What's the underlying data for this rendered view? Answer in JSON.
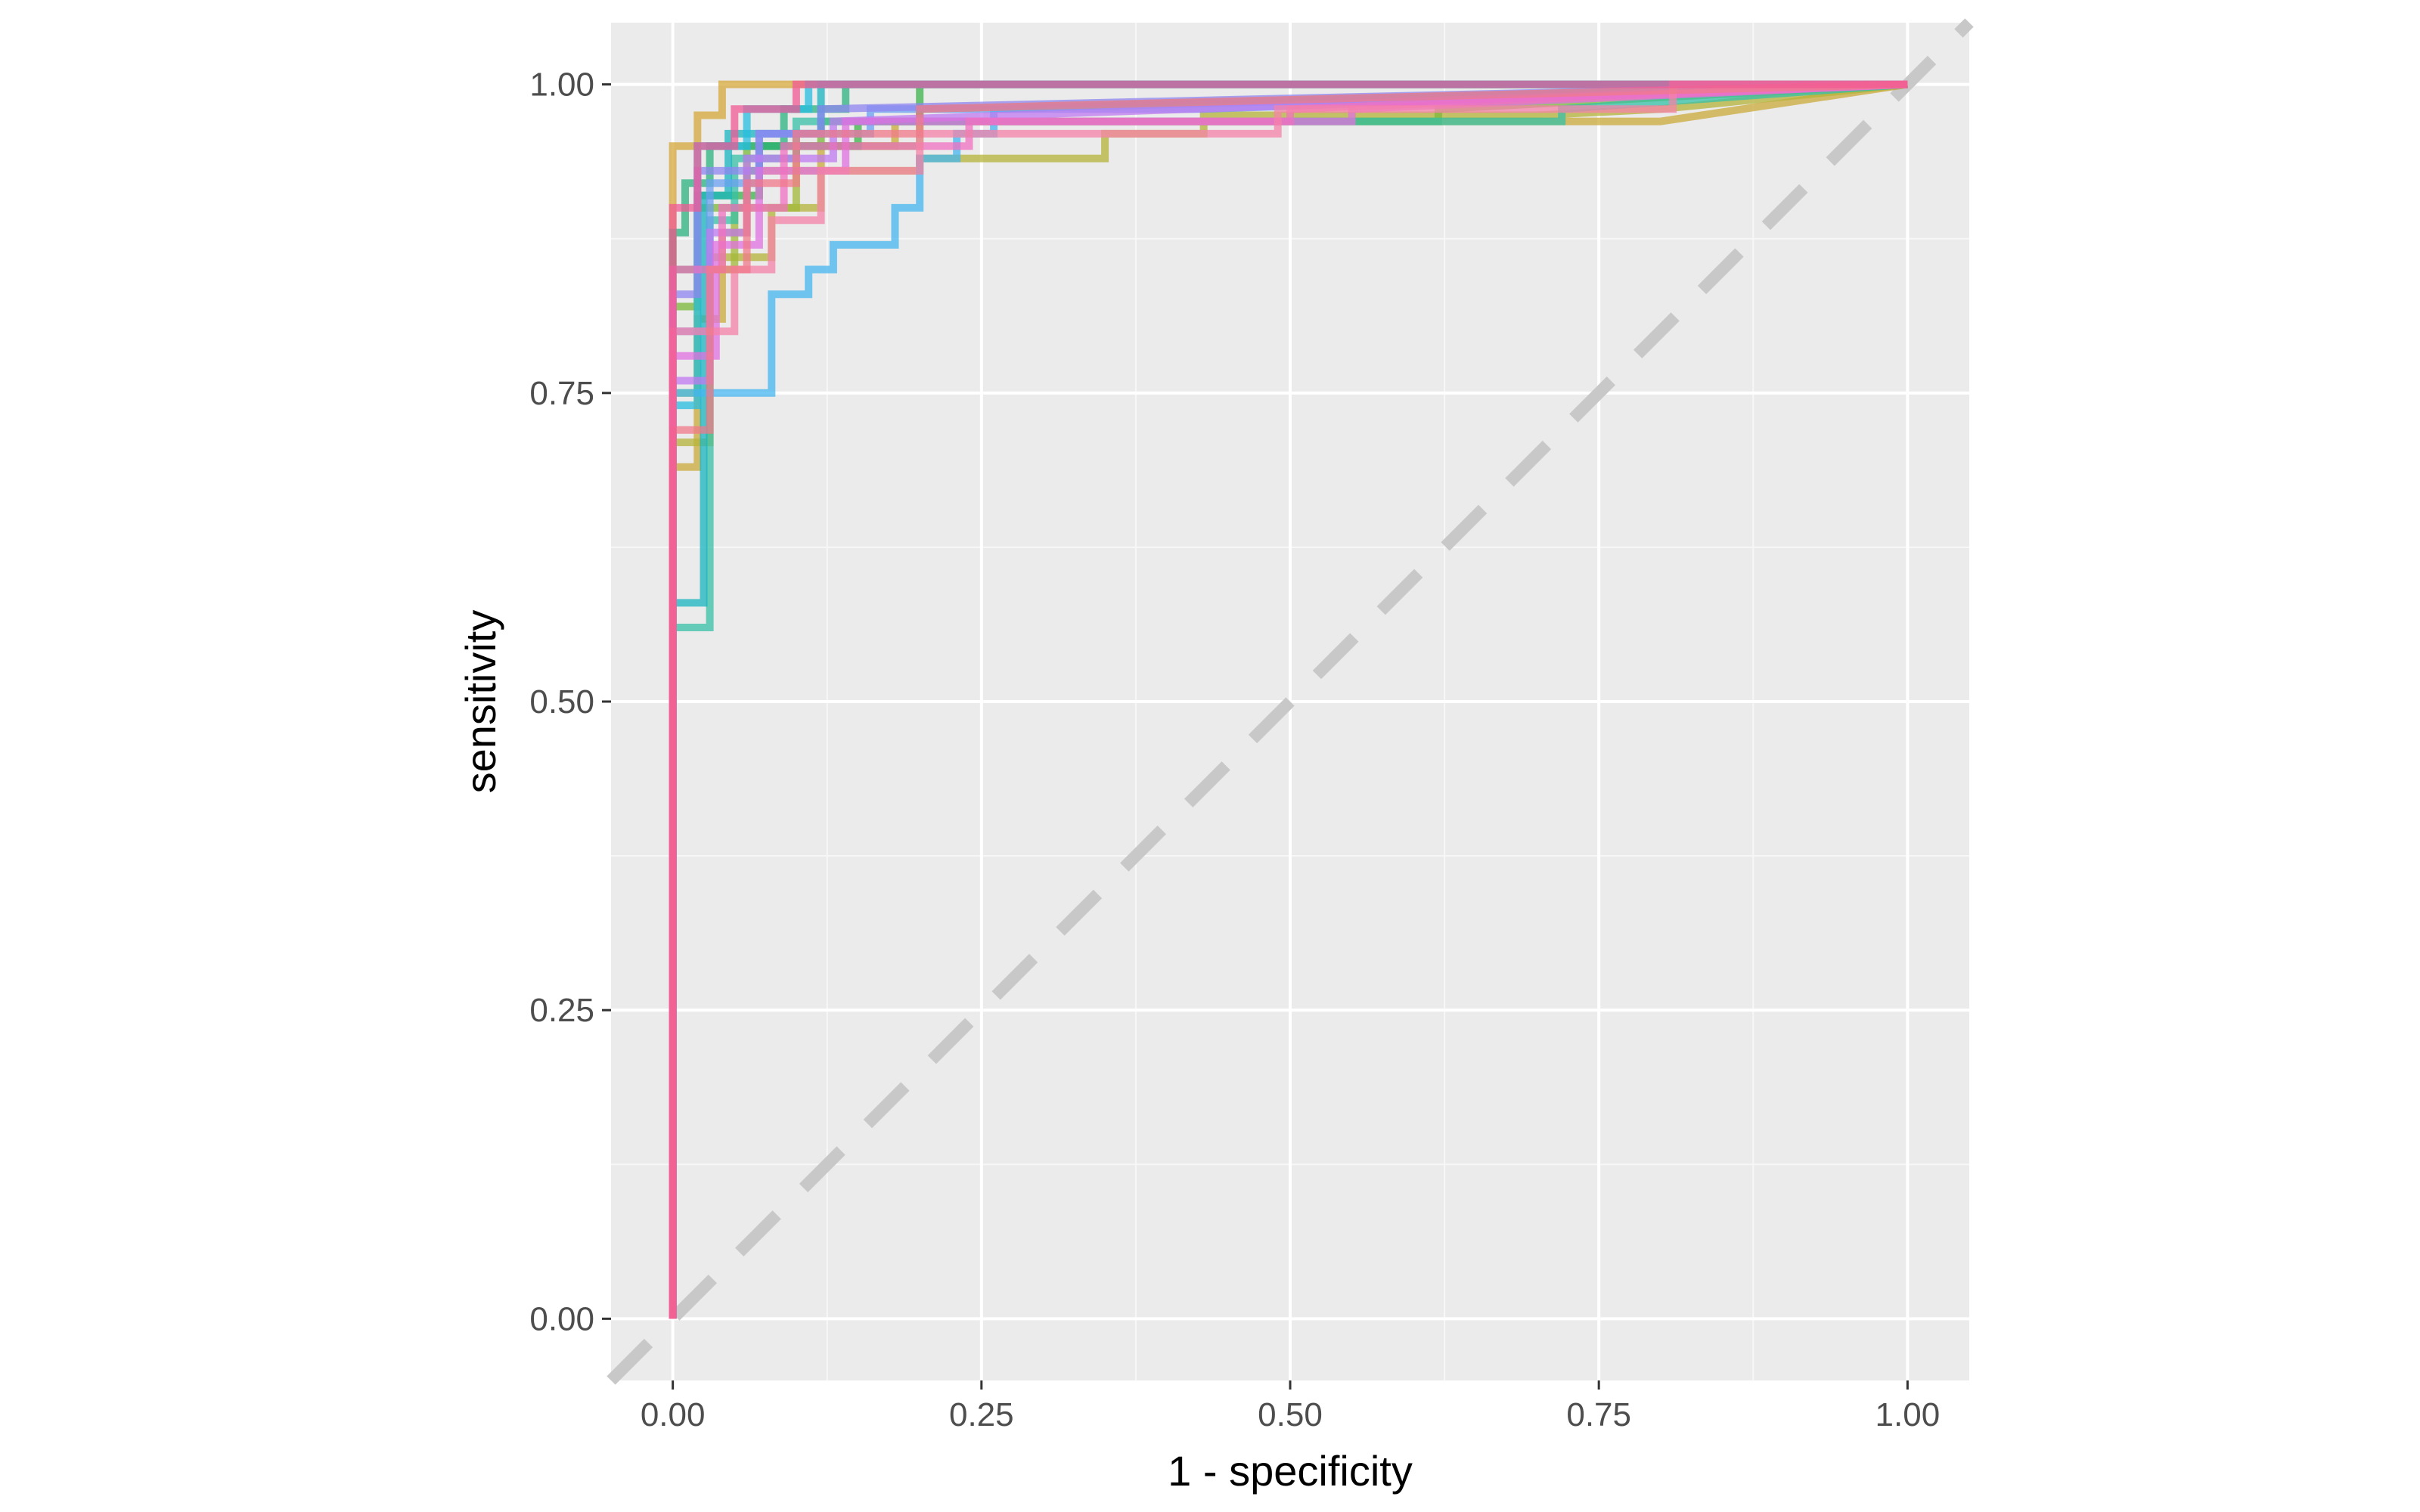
{
  "chart_data": {
    "type": "line",
    "title": "",
    "xlabel": "1 - specificity",
    "ylabel": "sensitivity",
    "xlim": [
      -0.05,
      1.05
    ],
    "ylim": [
      -0.05,
      1.05
    ],
    "x_ticks": [
      "0.00",
      "0.25",
      "0.50",
      "0.75",
      "1.00"
    ],
    "y_ticks": [
      "0.00",
      "0.25",
      "0.50",
      "0.75",
      "1.00"
    ],
    "grid": true,
    "legend": "none",
    "background": "#ebebeb",
    "reference_line": {
      "x": [
        -0.05,
        1.05
      ],
      "y": [
        -0.05,
        1.05
      ],
      "style": "dashed",
      "color": "#c8c8c8"
    },
    "series": [
      {
        "color": "#d4a73a",
        "points": [
          [
            0,
            0
          ],
          [
            0,
            0.95
          ],
          [
            0.02,
            0.95
          ],
          [
            0.02,
            0.975
          ],
          [
            0.04,
            0.975
          ],
          [
            0.04,
            1.0
          ],
          [
            1,
            1.0
          ]
        ]
      },
      {
        "color": "#c9a93a",
        "points": [
          [
            0,
            0
          ],
          [
            0,
            0.69
          ],
          [
            0.02,
            0.69
          ],
          [
            0.02,
            0.81
          ],
          [
            0.04,
            0.81
          ],
          [
            0.04,
            0.88
          ],
          [
            0.06,
            0.88
          ],
          [
            0.06,
            0.93
          ],
          [
            0.12,
            0.93
          ],
          [
            0.12,
            0.95
          ],
          [
            0.18,
            0.95
          ],
          [
            0.18,
            0.97
          ],
          [
            0.8,
            0.97
          ],
          [
            1,
            1.0
          ]
        ]
      },
      {
        "color": "#b5b33a",
        "points": [
          [
            0,
            0
          ],
          [
            0,
            0.71
          ],
          [
            0.03,
            0.71
          ],
          [
            0.03,
            0.86
          ],
          [
            0.08,
            0.86
          ],
          [
            0.08,
            0.9
          ],
          [
            0.12,
            0.9
          ],
          [
            0.12,
            0.93
          ],
          [
            0.2,
            0.93
          ],
          [
            0.2,
            0.94
          ],
          [
            0.35,
            0.94
          ],
          [
            0.35,
            0.96
          ],
          [
            0.43,
            0.96
          ],
          [
            0.43,
            0.975
          ],
          [
            0.7,
            0.975
          ],
          [
            0.8,
            0.98
          ],
          [
            1,
            1.0
          ]
        ]
      },
      {
        "color": "#a2b83a",
        "points": [
          [
            0,
            0
          ],
          [
            0,
            0.75
          ],
          [
            0.02,
            0.75
          ],
          [
            0.02,
            0.85
          ],
          [
            0.05,
            0.85
          ],
          [
            0.05,
            0.9
          ],
          [
            0.1,
            0.9
          ],
          [
            0.1,
            0.95
          ],
          [
            0.2,
            0.95
          ],
          [
            0.2,
            0.98
          ],
          [
            1,
            1.0
          ]
        ]
      },
      {
        "color": "#7bb83a",
        "points": [
          [
            0,
            0
          ],
          [
            0,
            0.82
          ],
          [
            0.02,
            0.82
          ],
          [
            0.02,
            0.9
          ],
          [
            0.06,
            0.9
          ],
          [
            0.06,
            0.95
          ],
          [
            0.12,
            0.95
          ],
          [
            0.12,
            0.97
          ],
          [
            0.62,
            0.97
          ],
          [
            0.62,
            0.98
          ],
          [
            1,
            1.0
          ]
        ]
      },
      {
        "color": "#3bb34a",
        "points": [
          [
            0,
            0
          ],
          [
            0,
            0.85
          ],
          [
            0.02,
            0.85
          ],
          [
            0.02,
            0.91
          ],
          [
            0.07,
            0.91
          ],
          [
            0.07,
            0.95
          ],
          [
            0.15,
            0.95
          ],
          [
            0.15,
            0.97
          ],
          [
            0.2,
            0.97
          ],
          [
            0.2,
            1.0
          ],
          [
            1,
            1.0
          ]
        ]
      },
      {
        "color": "#2bb37f",
        "points": [
          [
            0,
            0
          ],
          [
            0,
            0.88
          ],
          [
            0.01,
            0.88
          ],
          [
            0.01,
            0.92
          ],
          [
            0.03,
            0.92
          ],
          [
            0.03,
            0.95
          ],
          [
            0.09,
            0.95
          ],
          [
            0.09,
            0.98
          ],
          [
            0.14,
            0.98
          ],
          [
            0.14,
            1.0
          ],
          [
            1,
            1.0
          ]
        ]
      },
      {
        "color": "#35c0a6",
        "points": [
          [
            0,
            0
          ],
          [
            0,
            0.56
          ],
          [
            0.03,
            0.56
          ],
          [
            0.03,
            0.89
          ],
          [
            0.05,
            0.89
          ],
          [
            0.05,
            0.94
          ],
          [
            0.1,
            0.94
          ],
          [
            0.1,
            0.97
          ],
          [
            0.72,
            0.97
          ],
          [
            0.72,
            0.98
          ],
          [
            1,
            1.0
          ]
        ]
      },
      {
        "color": "#19b4c0",
        "points": [
          [
            0,
            0
          ],
          [
            0,
            0.58
          ],
          [
            0.025,
            0.58
          ],
          [
            0.025,
            0.91
          ],
          [
            0.045,
            0.91
          ],
          [
            0.045,
            0.96
          ],
          [
            0.12,
            0.96
          ],
          [
            0.12,
            1.0
          ],
          [
            1,
            1.0
          ]
        ]
      },
      {
        "color": "#25bde0",
        "points": [
          [
            0,
            0
          ],
          [
            0,
            0.74
          ],
          [
            0.02,
            0.74
          ],
          [
            0.02,
            0.95
          ],
          [
            0.06,
            0.95
          ],
          [
            0.06,
            0.98
          ],
          [
            0.11,
            0.98
          ],
          [
            0.11,
            1.0
          ],
          [
            1,
            1.0
          ]
        ]
      },
      {
        "color": "#45b5f0",
        "points": [
          [
            0,
            0
          ],
          [
            0,
            0.75
          ],
          [
            0.08,
            0.75
          ],
          [
            0.08,
            0.83
          ],
          [
            0.11,
            0.83
          ],
          [
            0.11,
            0.85
          ],
          [
            0.13,
            0.85
          ],
          [
            0.13,
            0.87
          ],
          [
            0.18,
            0.87
          ],
          [
            0.18,
            0.9
          ],
          [
            0.2,
            0.9
          ],
          [
            0.2,
            0.94
          ],
          [
            0.23,
            0.94
          ],
          [
            0.23,
            0.96
          ],
          [
            0.26,
            0.96
          ],
          [
            0.26,
            0.98
          ],
          [
            1,
            1.0
          ]
        ]
      },
      {
        "color": "#6aa0f0",
        "points": [
          [
            0,
            0
          ],
          [
            0,
            0.8
          ],
          [
            0.03,
            0.8
          ],
          [
            0.03,
            0.92
          ],
          [
            0.07,
            0.92
          ],
          [
            0.07,
            0.96
          ],
          [
            0.16,
            0.96
          ],
          [
            0.16,
            0.98
          ],
          [
            0.43,
            0.98
          ],
          [
            0.43,
            0.98
          ],
          [
            1,
            1.0
          ]
        ]
      },
      {
        "color": "#8f86f0",
        "points": [
          [
            0,
            0
          ],
          [
            0,
            0.83
          ],
          [
            0.02,
            0.83
          ],
          [
            0.02,
            0.93
          ],
          [
            0.07,
            0.93
          ],
          [
            0.07,
            0.96
          ],
          [
            0.12,
            0.96
          ],
          [
            0.12,
            0.98
          ],
          [
            1,
            1.0
          ]
        ]
      },
      {
        "color": "#c07af0",
        "points": [
          [
            0,
            0
          ],
          [
            0,
            0.76
          ],
          [
            0.03,
            0.76
          ],
          [
            0.03,
            0.88
          ],
          [
            0.06,
            0.88
          ],
          [
            0.06,
            0.94
          ],
          [
            0.13,
            0.94
          ],
          [
            0.13,
            0.97
          ],
          [
            1,
            1.0
          ]
        ]
      },
      {
        "color": "#e070e0",
        "points": [
          [
            0,
            0
          ],
          [
            0,
            0.78
          ],
          [
            0.035,
            0.78
          ],
          [
            0.035,
            0.87
          ],
          [
            0.07,
            0.87
          ],
          [
            0.07,
            0.93
          ],
          [
            0.14,
            0.93
          ],
          [
            0.14,
            0.97
          ],
          [
            0.55,
            0.97
          ],
          [
            0.55,
            0.98
          ],
          [
            1,
            1.0
          ]
        ]
      },
      {
        "color": "#f070c0",
        "points": [
          [
            0,
            0
          ],
          [
            0,
            0.85
          ],
          [
            0.04,
            0.85
          ],
          [
            0.04,
            0.9
          ],
          [
            0.09,
            0.9
          ],
          [
            0.09,
            0.95
          ],
          [
            0.24,
            0.95
          ],
          [
            0.24,
            0.97
          ],
          [
            0.5,
            0.97
          ],
          [
            0.5,
            0.98
          ],
          [
            1,
            1.0
          ]
        ]
      },
      {
        "color": "#f582a8",
        "points": [
          [
            0,
            0
          ],
          [
            0,
            0.8
          ],
          [
            0.05,
            0.8
          ],
          [
            0.05,
            0.85
          ],
          [
            0.08,
            0.85
          ],
          [
            0.08,
            0.89
          ],
          [
            0.12,
            0.89
          ],
          [
            0.12,
            0.93
          ],
          [
            0.2,
            0.93
          ],
          [
            0.2,
            0.96
          ],
          [
            0.49,
            0.96
          ],
          [
            0.49,
            0.98
          ],
          [
            0.81,
            0.98
          ],
          [
            0.81,
            1.0
          ],
          [
            1,
            1.0
          ]
        ]
      },
      {
        "color": "#f07a8a",
        "points": [
          [
            0,
            0
          ],
          [
            0,
            0.72
          ],
          [
            0.03,
            0.72
          ],
          [
            0.03,
            0.85
          ],
          [
            0.06,
            0.85
          ],
          [
            0.06,
            0.92
          ],
          [
            0.1,
            0.92
          ],
          [
            0.1,
            0.96
          ],
          [
            0.2,
            0.96
          ],
          [
            0.2,
            0.98
          ],
          [
            1,
            1.0
          ]
        ]
      },
      {
        "color": "#f05a94",
        "points": [
          [
            0,
            0
          ],
          [
            0,
            0.9
          ],
          [
            0.02,
            0.9
          ],
          [
            0.02,
            0.95
          ],
          [
            0.05,
            0.95
          ],
          [
            0.05,
            0.98
          ],
          [
            0.1,
            0.98
          ],
          [
            0.1,
            1.0
          ],
          [
            1,
            1.0
          ]
        ]
      }
    ]
  }
}
